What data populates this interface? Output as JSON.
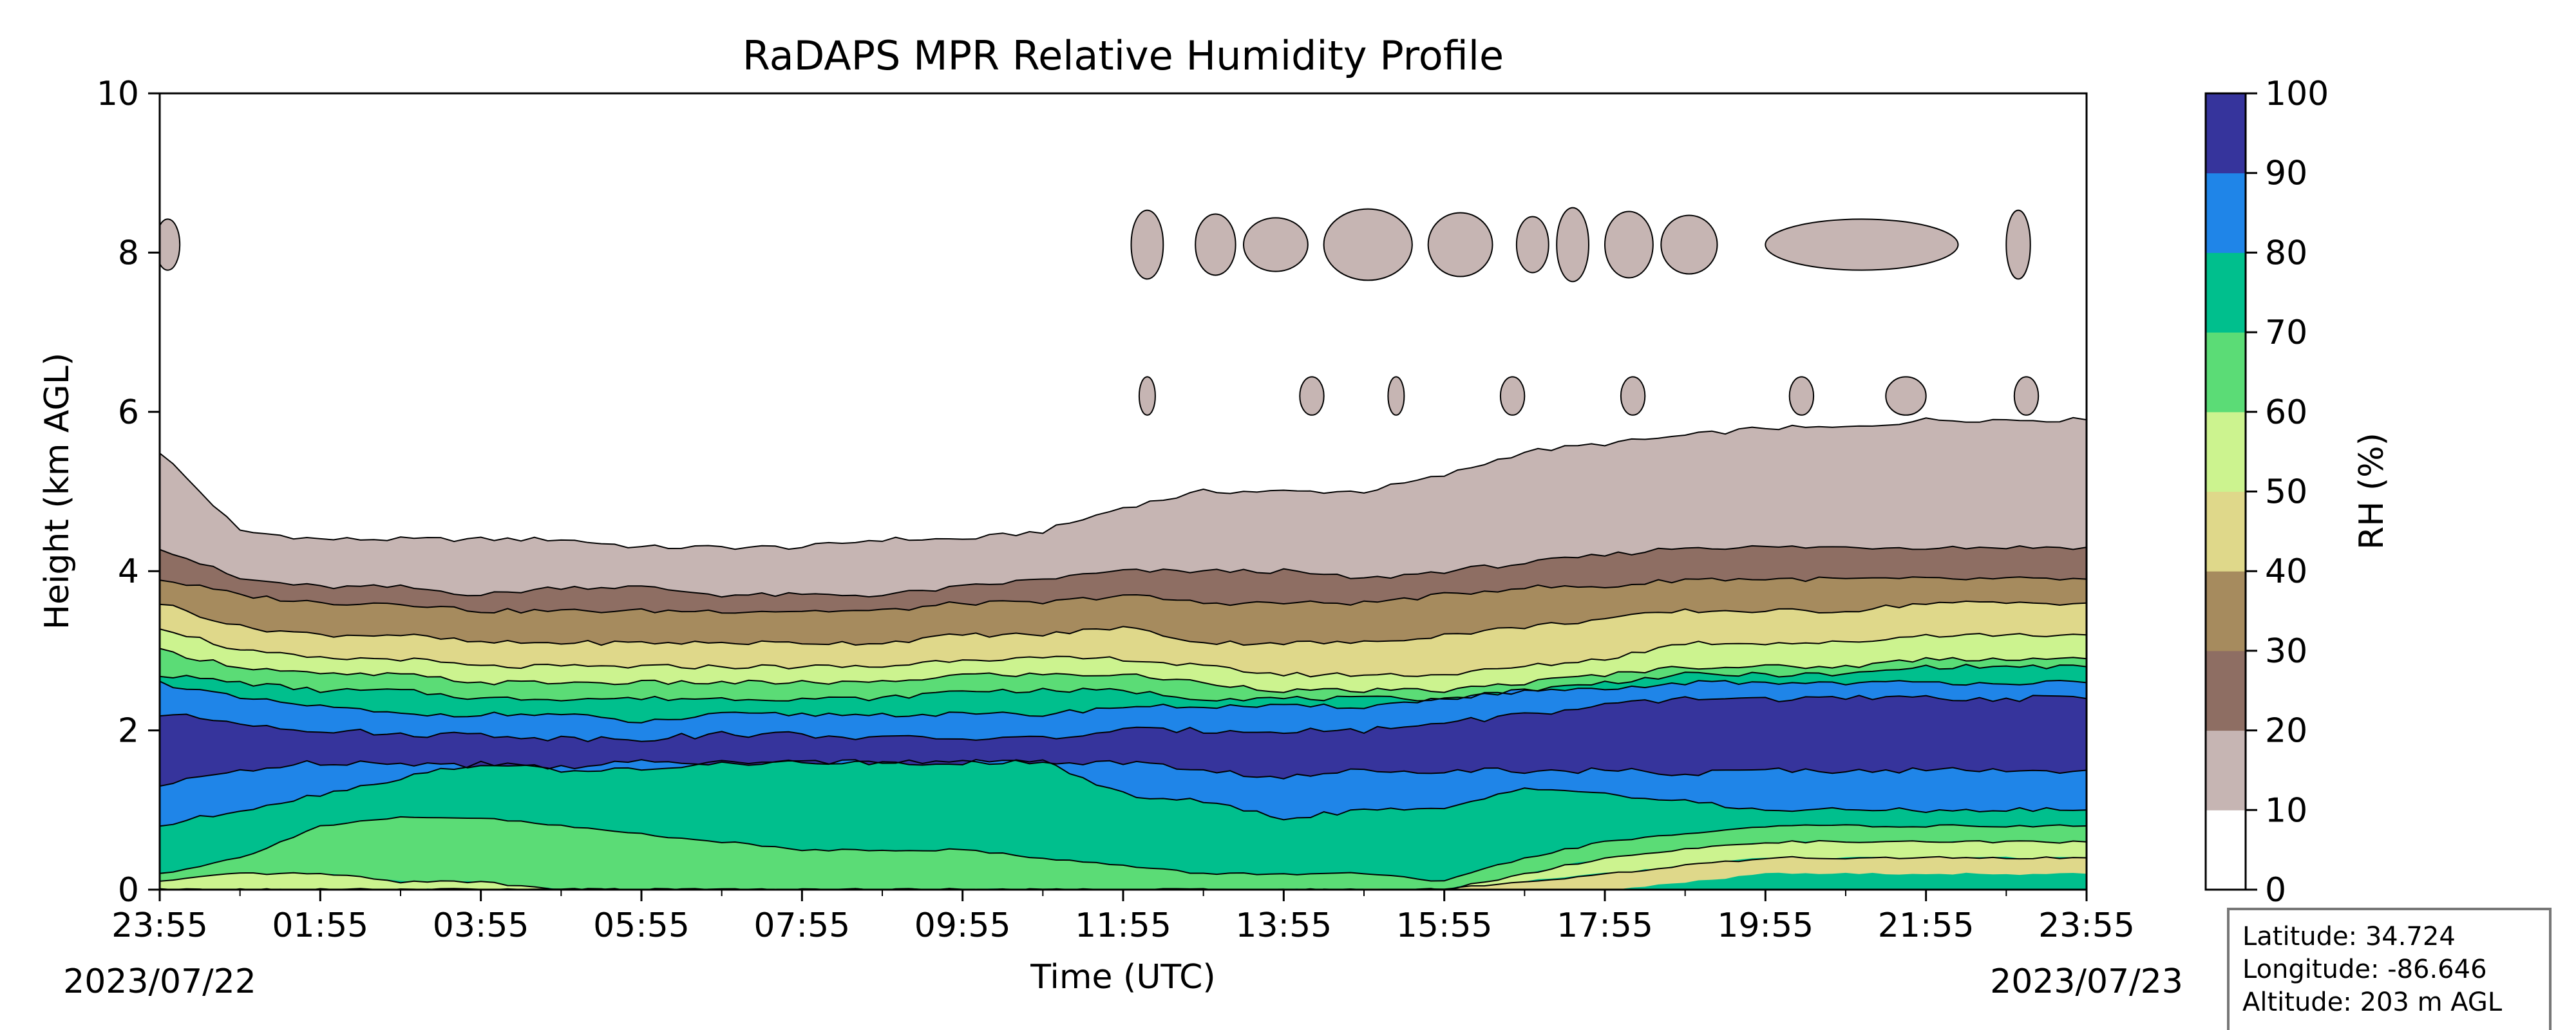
{
  "chart_data": {
    "type": "heatmap",
    "subtype": "filled-contour",
    "title": "RaDAPS MPR Relative Humidity Profile",
    "xlabel": "Time (UTC)",
    "ylabel": "Height (km AGL)",
    "xlim": [
      "2023/07/22 23:55",
      "2023/07/23 23:55"
    ],
    "ylim": [
      0,
      10
    ],
    "x_ticks": [
      "23:55",
      "01:55",
      "03:55",
      "05:55",
      "07:55",
      "09:55",
      "11:55",
      "13:55",
      "15:55",
      "17:55",
      "19:55",
      "21:55",
      "23:55"
    ],
    "y_ticks": [
      "0",
      "2",
      "4",
      "6",
      "8",
      "10"
    ],
    "start_date": "2023/07/22",
    "end_date": "2023/07/23",
    "grid": false,
    "colorbar": {
      "label": "RH (%)",
      "levels": [
        0,
        10,
        20,
        30,
        40,
        50,
        60,
        70,
        80,
        90,
        100
      ],
      "tick_labels": [
        "0",
        "10",
        "20",
        "30",
        "40",
        "50",
        "60",
        "70",
        "80",
        "90",
        "100"
      ],
      "colors": [
        "#ffffff",
        "#c6b5b3",
        "#8e6e63",
        "#a68b5e",
        "#dfd88a",
        "#ccf38f",
        "#5bdc76",
        "#00bf8d",
        "#1f85e8",
        "#36349c"
      ]
    },
    "time_hours": [
      0,
      1,
      2,
      3,
      4,
      5,
      6,
      7,
      8,
      9,
      10,
      11,
      12,
      13,
      14,
      15,
      16,
      17,
      18,
      19,
      20,
      21,
      22,
      23,
      24
    ],
    "level_heights_km": {
      "rh_10": [
        5.5,
        4.5,
        4.4,
        4.4,
        4.4,
        4.4,
        4.3,
        4.3,
        4.3,
        4.4,
        4.4,
        4.5,
        4.8,
        5.0,
        5.0,
        5.0,
        5.2,
        5.5,
        5.6,
        5.7,
        5.8,
        5.8,
        5.9,
        5.9,
        5.9
      ],
      "rh_20": [
        4.3,
        3.9,
        3.8,
        3.8,
        3.7,
        3.8,
        3.8,
        3.7,
        3.7,
        3.7,
        3.8,
        3.9,
        4.0,
        4.0,
        4.0,
        3.9,
        4.0,
        4.1,
        4.2,
        4.3,
        4.3,
        4.3,
        4.3,
        4.3,
        4.3
      ],
      "rh_30": [
        3.9,
        3.7,
        3.6,
        3.6,
        3.5,
        3.5,
        3.5,
        3.5,
        3.5,
        3.5,
        3.6,
        3.6,
        3.7,
        3.6,
        3.6,
        3.6,
        3.7,
        3.8,
        3.8,
        3.9,
        3.9,
        3.9,
        3.9,
        3.9,
        3.9
      ],
      "rh_40": [
        3.6,
        3.3,
        3.2,
        3.2,
        3.1,
        3.1,
        3.1,
        3.1,
        3.1,
        3.1,
        3.2,
        3.2,
        3.3,
        3.1,
        3.1,
        3.1,
        3.2,
        3.3,
        3.4,
        3.5,
        3.5,
        3.5,
        3.6,
        3.6,
        3.6
      ],
      "rh_50": [
        3.3,
        3.0,
        2.9,
        2.9,
        2.8,
        2.8,
        2.8,
        2.8,
        2.8,
        2.8,
        2.9,
        2.9,
        2.9,
        2.8,
        2.7,
        2.7,
        2.7,
        2.8,
        2.9,
        3.1,
        3.1,
        3.1,
        3.2,
        3.2,
        3.2
      ],
      "rh_60": [
        3.0,
        2.8,
        2.7,
        2.7,
        2.6,
        2.6,
        2.6,
        2.6,
        2.6,
        2.6,
        2.7,
        2.7,
        2.7,
        2.6,
        2.5,
        2.5,
        2.5,
        2.6,
        2.7,
        2.8,
        2.8,
        2.8,
        2.9,
        2.9,
        2.9
      ],
      "rh_70": [
        2.7,
        2.6,
        2.5,
        2.5,
        2.4,
        2.4,
        2.4,
        2.4,
        2.4,
        2.4,
        2.5,
        2.5,
        2.5,
        2.4,
        2.4,
        2.4,
        2.4,
        2.5,
        2.6,
        2.7,
        2.7,
        2.7,
        2.8,
        2.8,
        2.8
      ],
      "rh_80_top": [
        2.6,
        2.4,
        2.3,
        2.2,
        2.2,
        2.2,
        2.1,
        2.2,
        2.2,
        2.2,
        2.2,
        2.2,
        2.3,
        2.3,
        2.3,
        2.3,
        2.4,
        2.5,
        2.5,
        2.6,
        2.6,
        2.6,
        2.6,
        2.6,
        2.6
      ],
      "rh_80_bottom": [
        0.8,
        1.0,
        1.2,
        1.4,
        1.6,
        1.5,
        1.5,
        1.6,
        1.6,
        1.6,
        1.6,
        1.6,
        1.2,
        1.1,
        0.9,
        1.0,
        1.0,
        1.3,
        1.2,
        1.1,
        1.0,
        1.0,
        1.0,
        1.0,
        1.0
      ],
      "rh_70_bottom": [
        0.2,
        0.4,
        0.8,
        0.9,
        0.9,
        0.8,
        0.7,
        0.6,
        0.5,
        0.5,
        0.5,
        0.4,
        0.3,
        0.2,
        0.2,
        0.2,
        0.1,
        0.4,
        0.6,
        0.7,
        0.8,
        0.8,
        0.8,
        0.8,
        0.8
      ],
      "rh_60_bottom": [
        0.1,
        0.2,
        0.2,
        0.1,
        0.1,
        0.0,
        0.0,
        0.0,
        0.0,
        0.0,
        0.0,
        0.0,
        0.0,
        0.0,
        0.0,
        0.0,
        0.0,
        0.2,
        0.4,
        0.5,
        0.6,
        0.6,
        0.6,
        0.6,
        0.6
      ],
      "rh_50_bottom": [
        0.0,
        0.0,
        0.0,
        0.0,
        0.0,
        0.0,
        0.0,
        0.0,
        0.0,
        0.0,
        0.0,
        0.0,
        0.0,
        0.0,
        0.0,
        0.0,
        0.0,
        0.1,
        0.2,
        0.3,
        0.4,
        0.4,
        0.4,
        0.4,
        0.4
      ],
      "rh_40_bottom": [
        0.0,
        0.0,
        0.0,
        0.0,
        0.0,
        0.0,
        0.0,
        0.0,
        0.0,
        0.0,
        0.0,
        0.0,
        0.0,
        0.0,
        0.0,
        0.0,
        0.0,
        0.0,
        0.0,
        0.1,
        0.2,
        0.2,
        0.2,
        0.2,
        0.2
      ],
      "rh_90_top": [
        2.2,
        2.1,
        2.0,
        1.95,
        1.95,
        1.9,
        1.9,
        1.95,
        1.95,
        1.9,
        1.9,
        1.9,
        2.0,
        2.0,
        2.0,
        2.0,
        2.1,
        2.2,
        2.3,
        2.4,
        2.4,
        2.4,
        2.4,
        2.4,
        2.4
      ],
      "rh_90_bottom": [
        1.3,
        1.5,
        1.6,
        1.6,
        1.55,
        1.55,
        1.6,
        1.6,
        1.6,
        1.6,
        1.6,
        1.6,
        1.6,
        1.5,
        1.4,
        1.5,
        1.5,
        1.5,
        1.5,
        1.45,
        1.5,
        1.5,
        1.5,
        1.5,
        1.5
      ]
    },
    "upper_cloud_layer_km": [
      7.7,
      8.5
    ],
    "mid_cloud_layer_km": [
      5.8,
      6.6
    ]
  },
  "info_box": {
    "latitude": "Latitude: 34.724",
    "longitude": "Longitude: -86.646",
    "altitude": "Altitude: 203 m AGL"
  }
}
